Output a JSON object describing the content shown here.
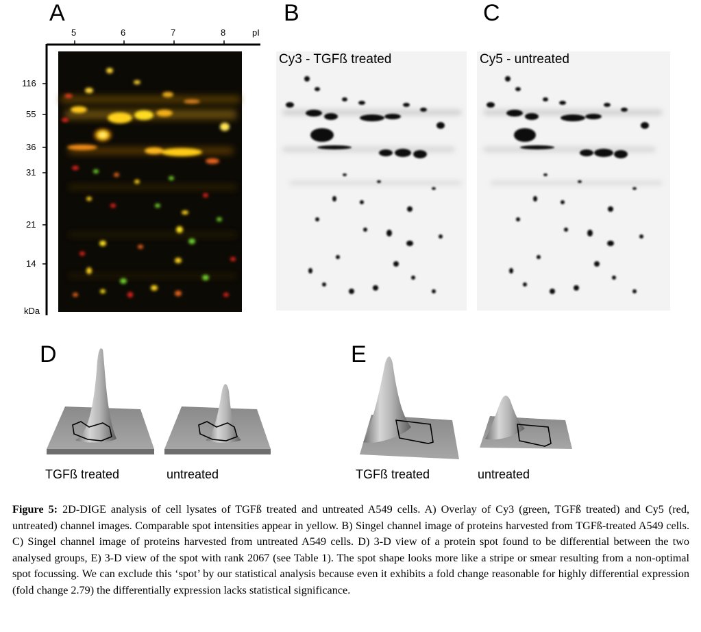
{
  "panels": {
    "a": {
      "letter": "A"
    },
    "b": {
      "letter": "B",
      "title": "Cy3 - TGFß treated"
    },
    "c": {
      "letter": "C",
      "title": "Cy5 - untreated"
    },
    "d": {
      "letter": "D",
      "left_label": "TGFß treated",
      "right_label": "untreated"
    },
    "e": {
      "letter": "E",
      "left_label": "TGFß treated",
      "right_label": "untreated"
    }
  },
  "gel_axes": {
    "pi_unit": "pI",
    "pi_ticks": [
      "5",
      "6",
      "7",
      "8"
    ],
    "mw_unit": "kDa",
    "mw_ticks": [
      "116",
      "55",
      "36",
      "31",
      "21",
      "14"
    ]
  },
  "caption": {
    "label": "Figure 5:",
    "text": " 2D-DIGE analysis of cell lysates of TGFß treated and untreated A549 cells. A) Overlay of Cy3 (green, TGFß treated) and Cy5 (red, untreated) channel images. Comparable spot intensities appear in yellow. B) Singel channel image of proteins harvested from TGFß-treated A549 cells. C) Singel channel image of proteins harvested from untreated A549 cells. D) 3-D view of a protein spot found to be differential between the two analysed groups, E) 3-D view of the spot with rank 2067 (see Table 1). The spot shape looks more like a stripe or smear resulting from a non-optimal spot focussing. We can exclude this ‘spot’ by our statistical analysis because even it exhibits a fold change reasonable for highly differential expression (fold change 2.79) the differentially expression lacks statistical significance."
  },
  "colors": {
    "overlay_bg": "#0c0a05",
    "green": "#6fd12a",
    "red": "#e2241b",
    "yellow": "#ffe21a"
  }
}
